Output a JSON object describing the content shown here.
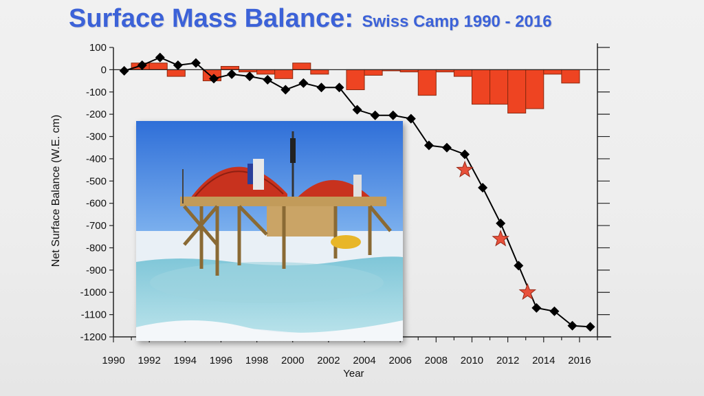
{
  "title": {
    "main": "Surface Mass Balance:",
    "sub": "Swiss Camp 1990 - 2016"
  },
  "colors": {
    "title": "#3c62d8",
    "bar_fill": "#ee4422",
    "bar_stroke": "#8a2a10",
    "line": "#000000",
    "marker": "#000000",
    "star_fill": "#e8503a",
    "star_stroke": "#9a2a18"
  },
  "photo": {
    "description_icon": "photo-swiss-camp-icon"
  },
  "chart_data": {
    "type": "bar+line",
    "xlabel": "Year",
    "ylabel": "Net Surface Balance (W.E. cm)",
    "xlim": [
      1990,
      2017
    ],
    "ylim": [
      -1200,
      100
    ],
    "x_ticks": [
      "1990",
      "1992",
      "1994",
      "1996",
      "1998",
      "2000",
      "2002",
      "2004",
      "2006",
      "2008",
      "2010",
      "2012",
      "2014",
      "2016"
    ],
    "y_ticks": [
      "100",
      "0",
      "-100",
      "-200",
      "-300",
      "-400",
      "-500",
      "-600",
      "-700",
      "-800",
      "-900",
      "-1000",
      "-1100",
      "-1200"
    ],
    "grid": false,
    "annual_bars": {
      "years": [
        1991,
        1992,
        1993,
        1994,
        1995,
        1996,
        1997,
        1998,
        1999,
        2000,
        2001,
        2002,
        2003,
        2004,
        2005,
        2006,
        2007,
        2008,
        2009,
        2010,
        2011,
        2012,
        2013,
        2014,
        2015,
        2016
      ],
      "values": [
        30,
        30,
        -30,
        0,
        -50,
        15,
        -10,
        -20,
        -40,
        30,
        -20,
        0,
        -90,
        -25,
        -5,
        -10,
        -115,
        -10,
        -30,
        -155,
        -155,
        -195,
        -175,
        -20,
        -60,
        0
      ]
    },
    "cumulative_series": {
      "x": [
        1990.6,
        1991.6,
        1992.6,
        1993.6,
        1994.6,
        1995.6,
        1996.6,
        1997.6,
        1998.6,
        1999.6,
        2000.6,
        2001.6,
        2002.6,
        2003.6,
        2004.6,
        2005.6,
        2006.6,
        2007.6,
        2008.6,
        2009.6,
        2010.6,
        2011.6,
        2012.6,
        2013.6,
        2014.6,
        2015.6,
        2016.6
      ],
      "y": [
        -5,
        20,
        55,
        20,
        30,
        -40,
        -20,
        -30,
        -45,
        -90,
        -60,
        -80,
        -80,
        -180,
        -205,
        -205,
        -220,
        -340,
        -350,
        -380,
        -530,
        -690,
        -880,
        -1070,
        -1085,
        -1150,
        -1155
      ]
    },
    "highlight_stars": {
      "x": [
        2009.6,
        2011.6,
        2013.1
      ],
      "y": [
        -450,
        -760,
        -1000
      ]
    }
  }
}
